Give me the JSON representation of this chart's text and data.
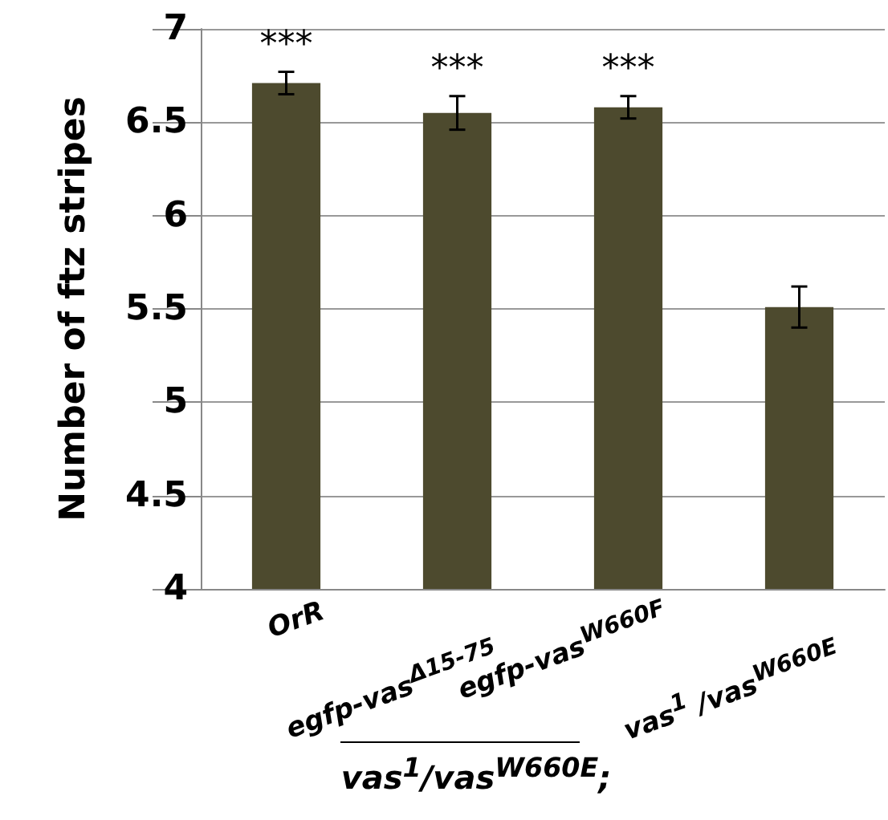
{
  "chart_data": {
    "type": "bar",
    "ylabel": "Number of ftz stripes",
    "categories": [
      "OrR",
      "egfp-vas$^{Δ15-75}$",
      "egfp-vas$^{W660F}$",
      "vas$^{1}$ /vas$^{W660E}$"
    ],
    "series": [
      {
        "color": "#4d4a2e",
        "values": [
          6.71,
          6.55,
          6.58,
          5.51
        ],
        "errors": [
          0.06,
          0.09,
          0.06,
          0.11
        ]
      }
    ],
    "ylim": [
      4,
      7
    ],
    "yticks": [
      4,
      4.5,
      5,
      5.5,
      6,
      6.5,
      7
    ],
    "grid": "y",
    "annotations": [
      "***",
      "***",
      "***",
      "vas$^{1}$/vas$^{W660E}$;"
    ]
  }
}
